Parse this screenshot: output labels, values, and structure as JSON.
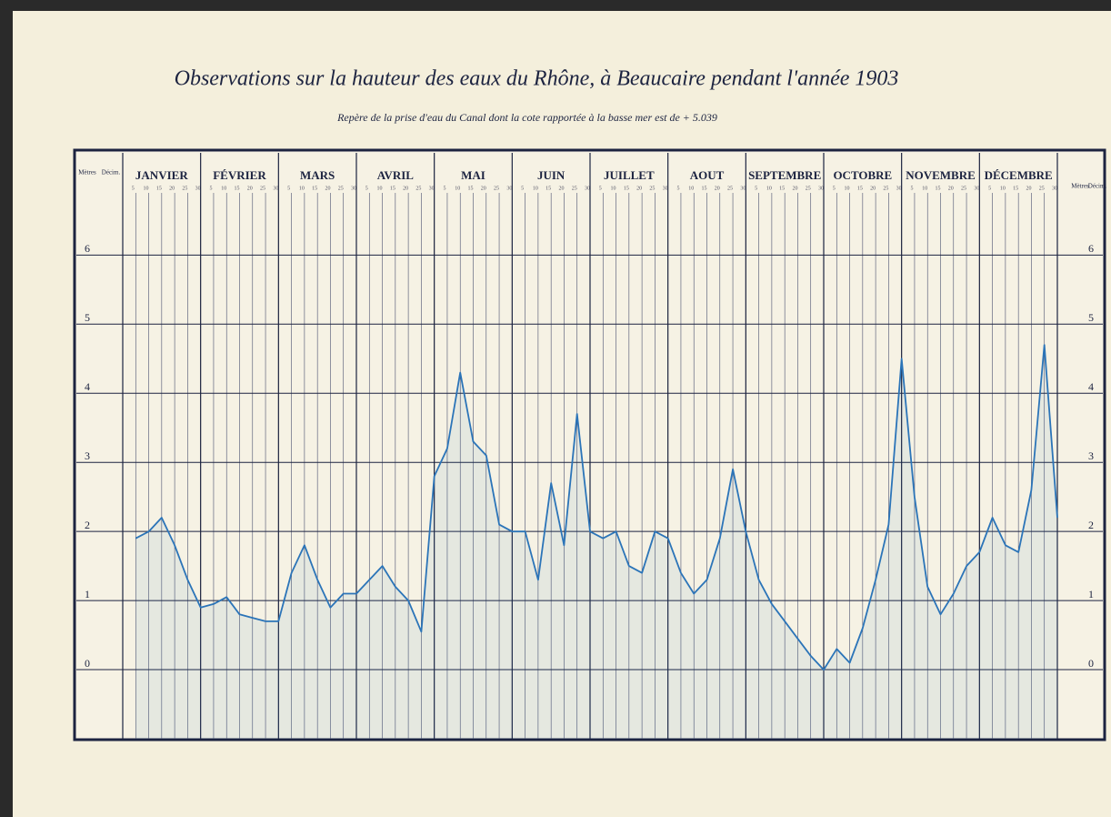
{
  "chart_data": {
    "type": "line",
    "title": "Observations sur la hauteur des eaux du Rhône, à Beaucaire pendant l'année 1903",
    "subtitle": "Repère de la prise d'eau du Canal dont la cote rapportée à la basse mer est de + 5.039",
    "y_axis_label": "Mètres",
    "y_axis_sublabel": "Décim.",
    "categories": [
      "JANVIER",
      "FÉVRIER",
      "MARS",
      "AVRIL",
      "MAI",
      "JUIN",
      "JUILLET",
      "AOUT",
      "SEPTEMBRE",
      "OCTOBRE",
      "NOVEMBRE",
      "DÉCEMBRE"
    ],
    "day_ticks": [
      5,
      10,
      15,
      20,
      25,
      30
    ],
    "series": [
      {
        "color": "#2b74b8",
        "values": [
          [
            1.9,
            2.0,
            2.2,
            1.8,
            1.3,
            0.9
          ],
          [
            0.95,
            1.05,
            0.8,
            0.75,
            0.7,
            0.7
          ],
          [
            1.4,
            1.8,
            1.3,
            0.9,
            1.1,
            1.1
          ],
          [
            1.3,
            1.5,
            1.2,
            1.0,
            0.55,
            2.8
          ],
          [
            3.2,
            4.3,
            3.3,
            3.1,
            2.1,
            2.0
          ],
          [
            2.0,
            1.3,
            2.7,
            1.8,
            3.7,
            2.0
          ],
          [
            1.9,
            2.0,
            1.5,
            1.4,
            2.0,
            1.9
          ],
          [
            1.4,
            1.1,
            1.3,
            1.9,
            2.9,
            2.0
          ],
          [
            1.3,
            0.95,
            0.7,
            0.45,
            0.2,
            0.0
          ],
          [
            0.3,
            0.1,
            0.6,
            1.3,
            2.1,
            4.5
          ],
          [
            2.5,
            1.2,
            0.8,
            1.1,
            1.5,
            1.7
          ],
          [
            2.2,
            1.8,
            1.7,
            2.6,
            4.7,
            2.2
          ]
        ]
      }
    ],
    "ylim": [
      -1,
      6.9
    ],
    "yticks": [
      0,
      1,
      2,
      3,
      4,
      5,
      6
    ],
    "grid": true
  }
}
